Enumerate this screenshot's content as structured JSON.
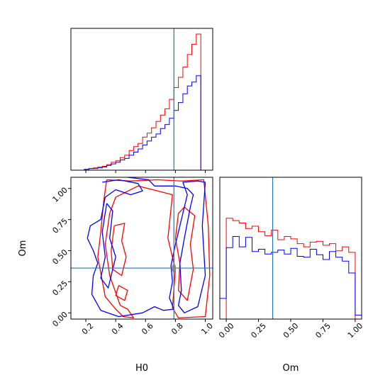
{
  "chart_data": [
    {
      "type": "histogram",
      "parameter": "H0",
      "bin_edges": [
        0.1,
        0.13,
        0.16,
        0.19,
        0.22,
        0.25,
        0.28,
        0.31,
        0.34,
        0.37,
        0.4,
        0.43,
        0.46,
        0.49,
        0.52,
        0.55,
        0.58,
        0.61,
        0.64,
        0.67,
        0.7,
        0.73,
        0.76,
        0.79,
        0.82,
        0.85,
        0.88,
        0.91,
        0.94,
        0.97,
        1.0
      ],
      "series": [
        {
          "color": "#ff0000",
          "values": [
            0,
            0,
            0,
            1,
            2,
            3,
            4,
            5,
            7,
            10,
            12,
            16,
            19,
            25,
            30,
            34,
            42,
            47,
            54,
            62,
            70,
            78,
            90,
            105,
            118,
            131,
            147,
            160,
            173,
            0
          ]
        },
        {
          "color": "#0000ff",
          "values": [
            0,
            0,
            0,
            1,
            2,
            2,
            3,
            4,
            6,
            8,
            10,
            13,
            15,
            19,
            23,
            27,
            32,
            37,
            42,
            46,
            53,
            58,
            66,
            76,
            86,
            97,
            107,
            112,
            120,
            0
          ]
        }
      ],
      "truth_line": {
        "x": 0.79,
        "color": "#1f77b4"
      },
      "xlim": [
        0.1,
        1.05
      ],
      "xticks": [
        0.2,
        0.4,
        0.6,
        0.8,
        1.0
      ],
      "yticks_visible": false
    },
    {
      "type": "contour",
      "xlabel": "H0",
      "ylabel": "Om",
      "xlim": [
        0.1,
        1.05
      ],
      "ylim": [
        -0.05,
        1.09
      ],
      "xticks": [
        "0.2",
        "0.4",
        "0.6",
        "0.8",
        "1.0"
      ],
      "yticks": [
        "0.00",
        "0.25",
        "0.50",
        "0.75",
        "1.00"
      ],
      "truth_lines": {
        "x": 0.79,
        "y": 0.36,
        "color": "#1f77b4"
      },
      "series": [
        {
          "color": "#ff0000",
          "contours": [
            [
              [
                0.34,
                1.07
              ],
              [
                0.5,
                1.06
              ],
              [
                0.68,
                1.07
              ],
              [
                0.84,
                1.06
              ],
              [
                0.99,
                1.07
              ],
              [
                1.02,
                0.7
              ],
              [
                1.03,
                0.3
              ],
              [
                1.0,
                -0.03
              ],
              [
                0.82,
                -0.04
              ],
              [
                0.78,
                0.04
              ],
              [
                0.8,
                0.35
              ],
              [
                0.75,
                0.6
              ],
              [
                0.78,
                0.95
              ],
              [
                0.55,
                1.02
              ],
              [
                0.4,
                0.93
              ],
              [
                0.36,
                0.8
              ],
              [
                0.33,
                0.55
              ],
              [
                0.36,
                0.3
              ],
              [
                0.43,
                0.06
              ],
              [
                0.48,
                0.03
              ],
              [
                0.52,
                -0.04
              ],
              [
                0.45,
                -0.03
              ],
              [
                0.4,
                0.03
              ],
              [
                0.33,
                0.13
              ],
              [
                0.3,
                0.32
              ],
              [
                0.28,
                0.45
              ],
              [
                0.3,
                0.65
              ],
              [
                0.32,
                0.9
              ],
              [
                0.34,
                1.07
              ]
            ],
            [
              [
                0.86,
                0.85
              ],
              [
                0.93,
                0.78
              ],
              [
                0.9,
                0.55
              ],
              [
                0.92,
                0.35
              ],
              [
                0.88,
                0.1
              ],
              [
                0.82,
                0.18
              ],
              [
                0.83,
                0.4
              ],
              [
                0.8,
                0.6
              ],
              [
                0.82,
                0.8
              ],
              [
                0.86,
                0.85
              ]
            ],
            [
              [
                0.39,
                0.7
              ],
              [
                0.46,
                0.72
              ],
              [
                0.44,
                0.58
              ],
              [
                0.47,
                0.45
              ],
              [
                0.44,
                0.3
              ],
              [
                0.38,
                0.35
              ],
              [
                0.37,
                0.5
              ],
              [
                0.39,
                0.7
              ]
            ],
            [
              [
                0.42,
                0.22
              ],
              [
                0.48,
                0.18
              ],
              [
                0.46,
                0.1
              ],
              [
                0.4,
                0.14
              ],
              [
                0.42,
                0.22
              ]
            ]
          ]
        },
        {
          "color": "#0000ff",
          "contours": [
            [
              [
                0.31,
                1.05
              ],
              [
                0.42,
                1.07
              ],
              [
                0.55,
                1.04
              ],
              [
                0.58,
                0.98
              ],
              [
                0.5,
                0.95
              ],
              [
                0.4,
                0.99
              ],
              [
                0.33,
                0.93
              ],
              [
                0.3,
                0.75
              ],
              [
                0.23,
                0.7
              ],
              [
                0.21,
                0.6
              ],
              [
                0.25,
                0.5
              ],
              [
                0.28,
                0.4
              ],
              [
                0.25,
                0.3
              ],
              [
                0.24,
                0.15
              ],
              [
                0.3,
                0.02
              ],
              [
                0.42,
                -0.03
              ],
              [
                0.58,
                0.0
              ],
              [
                0.66,
                0.05
              ],
              [
                0.72,
                0.02
              ],
              [
                0.79,
                0.03
              ],
              [
                0.76,
                0.12
              ],
              [
                0.78,
                0.25
              ],
              [
                0.77,
                0.38
              ],
              [
                0.8,
                0.55
              ],
              [
                0.84,
                0.75
              ],
              [
                0.88,
                0.95
              ],
              [
                0.85,
                1.05
              ],
              [
                0.95,
                1.06
              ],
              [
                1.0,
                1.05
              ],
              [
                0.98,
                0.7
              ],
              [
                1.0,
                0.3
              ],
              [
                0.95,
                0.05
              ],
              [
                0.86,
                0.0
              ],
              [
                0.82,
                0.06
              ],
              [
                0.84,
                0.18
              ],
              [
                0.83,
                0.4
              ],
              [
                0.86,
                0.6
              ],
              [
                0.9,
                0.85
              ],
              [
                0.92,
                0.95
              ],
              [
                0.88,
                1.0
              ],
              [
                0.8,
                1.02
              ],
              [
                0.66,
                1.02
              ],
              [
                0.62,
                1.07
              ],
              [
                0.48,
                1.09
              ]
            ],
            [
              [
                0.34,
                0.88
              ],
              [
                0.38,
                0.82
              ],
              [
                0.36,
                0.6
              ],
              [
                0.4,
                0.45
              ],
              [
                0.35,
                0.2
              ],
              [
                0.3,
                0.28
              ],
              [
                0.33,
                0.45
              ],
              [
                0.31,
                0.65
              ],
              [
                0.34,
                0.88
              ]
            ]
          ]
        }
      ]
    },
    {
      "type": "histogram",
      "parameter": "Om",
      "xlabel": "Om",
      "bin_edges": [
        -0.05,
        0.0,
        0.05,
        0.1,
        0.15,
        0.2,
        0.25,
        0.3,
        0.35,
        0.4,
        0.45,
        0.5,
        0.55,
        0.6,
        0.65,
        0.7,
        0.75,
        0.8,
        0.85,
        0.9,
        0.95,
        1.0,
        1.05
      ],
      "series": [
        {
          "color": "#ff0000",
          "values": [
            0,
            127,
            124,
            121,
            114,
            117,
            110,
            105,
            112,
            100,
            104,
            101,
            95,
            91,
            97,
            98,
            93,
            95,
            86,
            91,
            84,
            0
          ]
        },
        {
          "color": "#0000ff",
          "values": [
            26,
            90,
            104,
            91,
            103,
            85,
            88,
            82,
            84,
            87,
            82,
            89,
            79,
            78,
            88,
            81,
            75,
            85,
            78,
            73,
            58,
            5
          ]
        }
      ],
      "truth_line": {
        "x": 0.36,
        "color": "#1f77b4"
      },
      "xlim": [
        -0.05,
        1.05
      ],
      "xticks": [
        "0.00",
        "0.25",
        "0.50",
        "0.75",
        "1.00"
      ],
      "yticks_visible": false
    }
  ]
}
